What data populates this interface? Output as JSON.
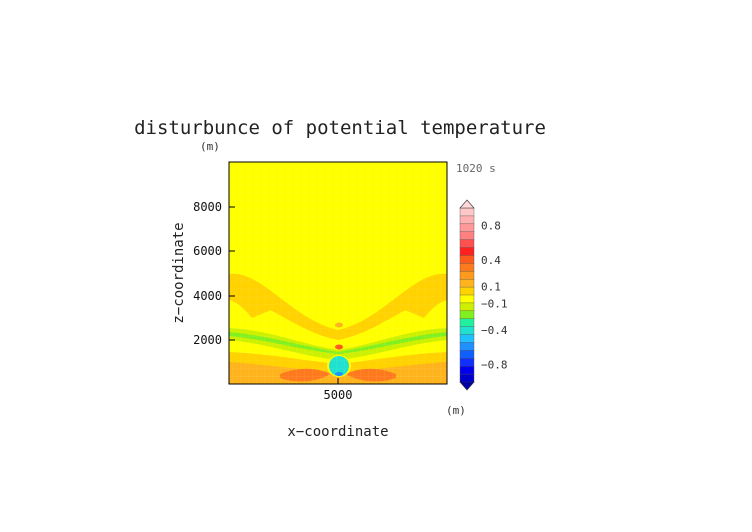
{
  "chart_data": {
    "type": "heatmap",
    "title": "disturbunce of potential temperature",
    "time_label": "1020 s",
    "xlabel": "x−coordinate",
    "ylabel": "z−coordinate",
    "x_unit": "(m)",
    "y_unit": "(m)",
    "x_ticks": [
      "5000"
    ],
    "y_ticks": [
      "2000",
      "4000",
      "6000",
      "8000"
    ],
    "xlim": [
      0,
      10000
    ],
    "ylim": [
      0,
      10000
    ],
    "colorbar": {
      "labels": [
        "0.8",
        "0.4",
        "0.1",
        "−0.1",
        "−0.4",
        "−0.8"
      ],
      "label_values": [
        0.8,
        0.4,
        0.1,
        -0.1,
        -0.4,
        -0.8
      ],
      "levels": [
        {
          "value": 1.0,
          "color": "#ffc8c8"
        },
        {
          "value": 0.9,
          "color": "#ffb0b0"
        },
        {
          "value": 0.8,
          "color": "#ff9898"
        },
        {
          "value": 0.7,
          "color": "#ff8080"
        },
        {
          "value": 0.6,
          "color": "#ff5050"
        },
        {
          "value": 0.5,
          "color": "#ff2020"
        },
        {
          "value": 0.4,
          "color": "#ff5a1e"
        },
        {
          "value": 0.3,
          "color": "#ff7a1e"
        },
        {
          "value": 0.2,
          "color": "#ff9a1e"
        },
        {
          "value": 0.1,
          "color": "#ffb41e"
        },
        {
          "value": 0.0,
          "color": "#ffd200"
        },
        {
          "value": -0.05,
          "color": "#ffff00"
        },
        {
          "value": -0.1,
          "color": "#ccf000"
        },
        {
          "value": -0.2,
          "color": "#80f020"
        },
        {
          "value": -0.3,
          "color": "#20f0a0"
        },
        {
          "value": -0.4,
          "color": "#20e0d0"
        },
        {
          "value": -0.5,
          "color": "#20c0ff"
        },
        {
          "value": -0.6,
          "color": "#2090ff"
        },
        {
          "value": -0.7,
          "color": "#1060ff"
        },
        {
          "value": -0.8,
          "color": "#1030ff"
        },
        {
          "value": -0.9,
          "color": "#0000ee"
        },
        {
          "value": -1.0,
          "color": "#0000cc"
        }
      ]
    }
  }
}
